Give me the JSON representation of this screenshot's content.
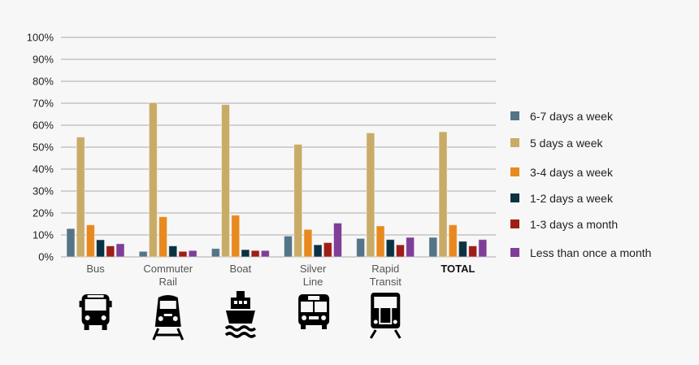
{
  "chart_data": {
    "type": "bar",
    "title": "",
    "xlabel": "",
    "ylabel": "",
    "ylim": [
      0,
      100
    ],
    "yticks": [
      "0%",
      "10%",
      "20%",
      "30%",
      "40%",
      "50%",
      "60%",
      "70%",
      "80%",
      "90%",
      "100%"
    ],
    "grid": true,
    "legend_position": "right",
    "categories": [
      [
        "Bus"
      ],
      [
        "Commuter",
        "Rail"
      ],
      [
        "Boat"
      ],
      [
        "Silver",
        "Line"
      ],
      [
        "Rapid",
        "Transit"
      ],
      [
        "TOTAL"
      ]
    ],
    "category_icons": [
      "bus-icon",
      "commuter-rail-icon",
      "boat-icon",
      "silver-line-bus-icon",
      "rapid-transit-train-icon",
      ""
    ],
    "series": [
      {
        "name": "6-7 days a week",
        "color": "#557487",
        "values": [
          12.9,
          2.5,
          3.8,
          9.5,
          8.4,
          8.9
        ]
      },
      {
        "name": "5 days a week",
        "color": "#c9ab68",
        "values": [
          54.6,
          70.3,
          69.4,
          51.3,
          56.5,
          57.0
        ]
      },
      {
        "name": "3-4 days a week",
        "color": "#e8891f",
        "values": [
          14.6,
          18.3,
          19.0,
          12.5,
          14.1,
          14.6
        ]
      },
      {
        "name": "1-2 days a week",
        "color": "#0b3242",
        "values": [
          7.8,
          5.0,
          3.3,
          5.5,
          7.9,
          7.1
        ]
      },
      {
        "name": "1-3 days a month",
        "color": "#9e1e17",
        "values": [
          5.0,
          2.5,
          2.9,
          6.5,
          5.5,
          5.0
        ]
      },
      {
        "name": "Less than once a month",
        "color": "#7f3e98",
        "values": [
          6.0,
          2.9,
          2.9,
          15.4,
          8.9,
          7.9
        ]
      }
    ]
  }
}
